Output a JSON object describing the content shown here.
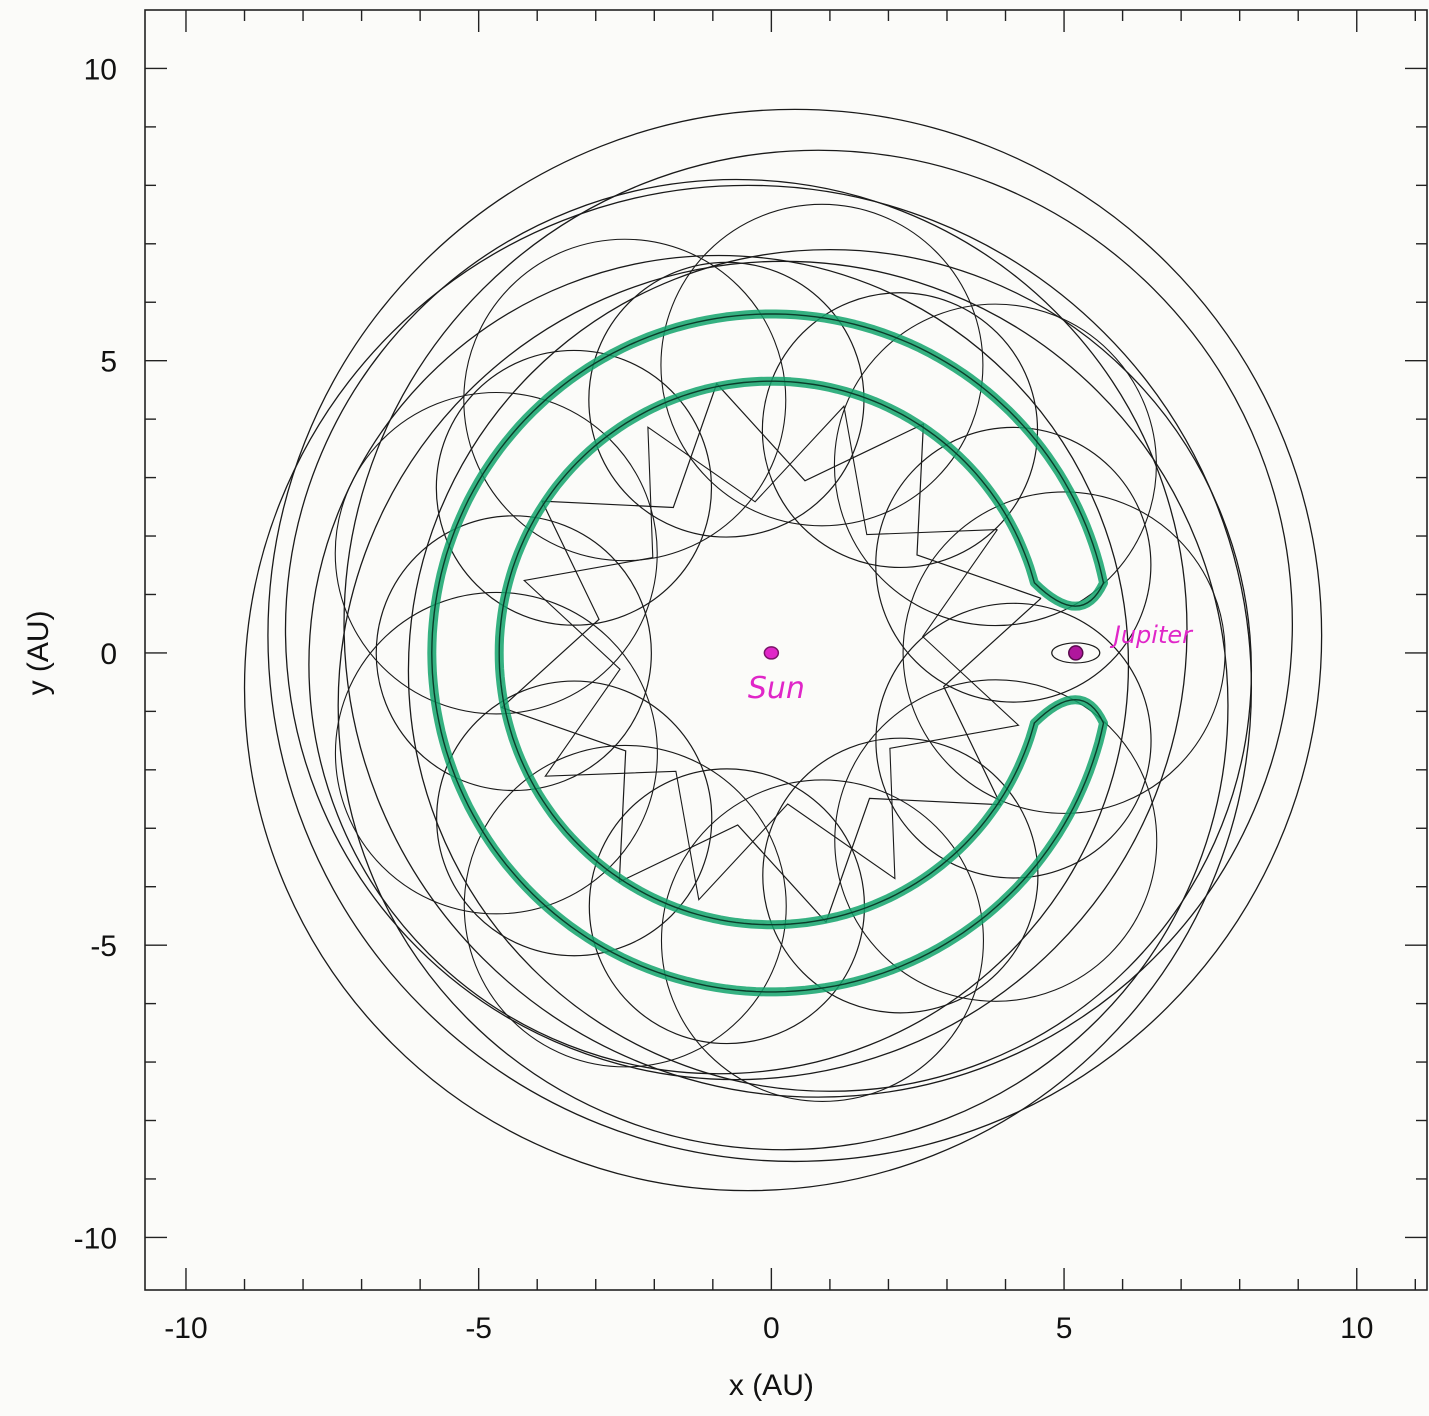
{
  "chart_data": {
    "type": "line",
    "title": "",
    "xlabel": "x (AU)",
    "ylabel": "y (AU)",
    "xlim": [
      -10.7,
      11.2
    ],
    "ylim": [
      -10.9,
      11.0
    ],
    "xticks": [
      -10,
      -5,
      0,
      5,
      10
    ],
    "yticks": [
      10,
      5,
      0,
      -5,
      -10
    ],
    "xtick_labels": [
      "-10",
      "-5",
      "0",
      "5",
      "10"
    ],
    "ytick_labels": [
      "10",
      "5",
      "0",
      "-5",
      "-10"
    ],
    "grid": false,
    "legend": "none",
    "colors": {
      "orbit": "#1a1a1a",
      "highlight": "#12a36c",
      "annotation": "#e026c8",
      "frame": "#222222"
    },
    "series": [
      {
        "name": "",
        "kind": "trajectory (black rosette)",
        "orbits": [
          {
            "center": [
              0.4,
              0.3
            ],
            "radius": 9.0
          },
          {
            "center": [
              -0.4,
              -0.6
            ],
            "radius": 8.6
          },
          {
            "center": [
              0.8,
              0.5
            ],
            "radius": 8.1
          },
          {
            "center": [
              -0.6,
              0.4
            ],
            "radius": 7.7
          },
          {
            "center": [
              0.2,
              -0.9
            ],
            "radius": 7.6
          },
          {
            "center": [
              1.0,
              -0.3
            ],
            "radius": 7.2
          },
          {
            "center": [
              -0.9,
              -0.2
            ],
            "radius": 7.0
          }
        ],
        "loops": {
          "count": 9,
          "ring_center": 4.4,
          "loop_radius": 2.35,
          "center_offset": 1.0
        },
        "star": {
          "points": 8,
          "outer_radius": 4.7,
          "inner_radius": 3.0
        }
      },
      {
        "name": "",
        "kind": "highlighted horseshoe region (green)",
        "outer_radius": 5.8,
        "inner_radius": 4.65,
        "gap_x": 5.0,
        "gap_y": 0.3
      }
    ],
    "annotations": [
      {
        "text": "Sun",
        "x": 0.0,
        "y": 0.0
      },
      {
        "text": "Jupiter",
        "x": 5.2,
        "y": 0.0
      }
    ]
  }
}
